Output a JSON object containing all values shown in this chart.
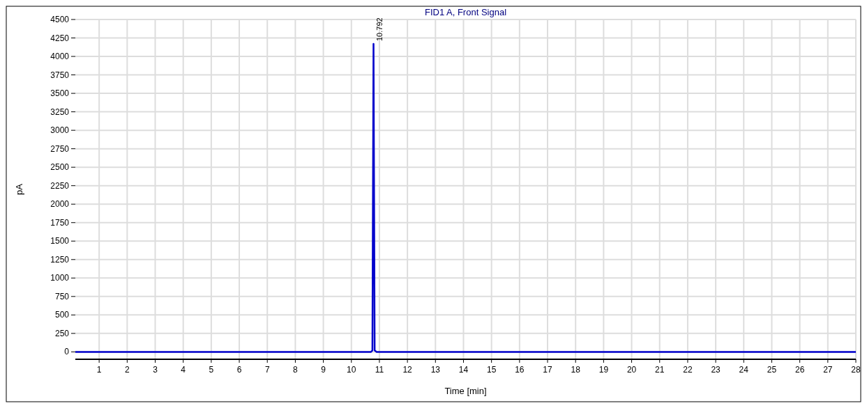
{
  "chart_data": {
    "type": "line",
    "title": "FID1 A, Front Signal",
    "xlabel": "Time [min]",
    "ylabel": "pA",
    "xlim": [
      0.15,
      28
    ],
    "xticks": [
      1,
      2,
      3,
      4,
      5,
      6,
      7,
      8,
      9,
      10,
      11,
      12,
      13,
      14,
      15,
      16,
      17,
      18,
      19,
      20,
      21,
      22,
      23,
      24,
      25,
      26,
      27,
      28
    ],
    "ylim": [
      -100,
      4500
    ],
    "yticks": [
      0,
      250,
      500,
      750,
      1000,
      1250,
      1500,
      1750,
      2000,
      2250,
      2500,
      2750,
      3000,
      3250,
      3500,
      3750,
      4000,
      4250,
      4500
    ],
    "grid": true,
    "line_style": "solid",
    "series": [
      {
        "color": "#0000cc",
        "x": [
          0.15,
          10.7,
          10.75,
          10.79,
          10.83,
          10.9,
          28
        ],
        "values": [
          0,
          0,
          20,
          4170,
          20,
          0,
          0
        ]
      }
    ],
    "annotations": [
      {
        "text": "10.792",
        "x": 10.79,
        "y": 4170
      }
    ]
  }
}
